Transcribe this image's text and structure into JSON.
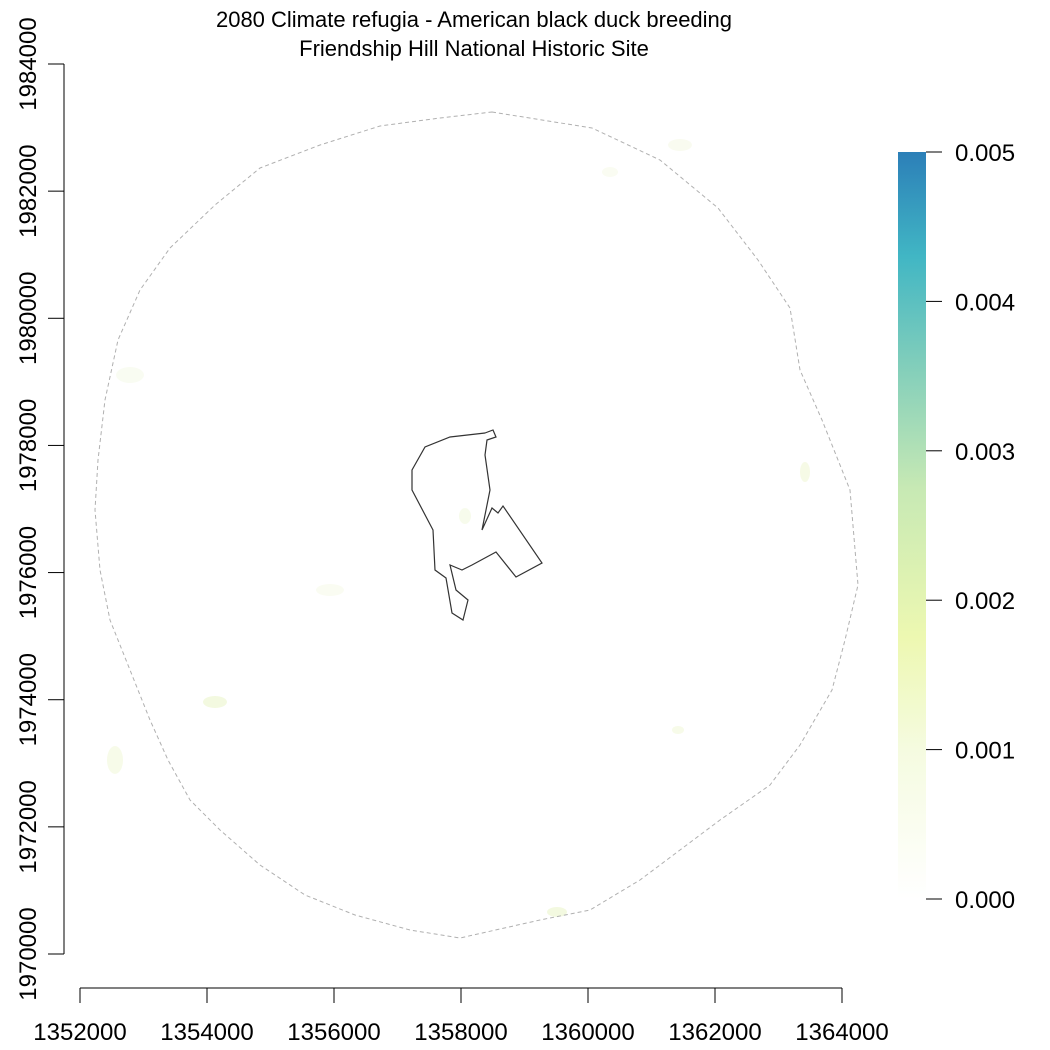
{
  "title": {
    "line1": "2080 Climate refugia - American black duck breeding",
    "line2": "Friendship Hill National Historic Site"
  },
  "map": {
    "x_ticks": [
      1352000,
      1354000,
      1356000,
      1358000,
      1360000,
      1362000,
      1364000
    ],
    "y_ticks": [
      1970000,
      1972000,
      1974000,
      1976000,
      1978000,
      1980000,
      1982000,
      1984000
    ],
    "x_tick_labels": [
      "1352000",
      "1354000",
      "1356000",
      "1358000",
      "1360000",
      "1362000",
      "1364000"
    ],
    "y_tick_labels": [
      "1970000",
      "1972000",
      "1974000",
      "1976000",
      "1978000",
      "1980000",
      "1982000",
      "1984000"
    ],
    "xlim": [
      1352000,
      1364000
    ],
    "ylim": [
      1970000,
      1984000
    ],
    "buffer_color": "#b0b0b0",
    "park_boundary_color": "#333333"
  },
  "legend": {
    "ticks": [
      0.0,
      0.001,
      0.002,
      0.003,
      0.004,
      0.005
    ],
    "tick_labels": [
      "0.000",
      "0.001",
      "0.002",
      "0.003",
      "0.004",
      "0.005"
    ],
    "range": [
      0.0,
      0.005
    ],
    "colors": [
      "#ffffff",
      "#f5fbe0",
      "#edf8b1",
      "#c7e9b4",
      "#7fcdbb",
      "#41b6c4",
      "#2c7fb8"
    ]
  }
}
